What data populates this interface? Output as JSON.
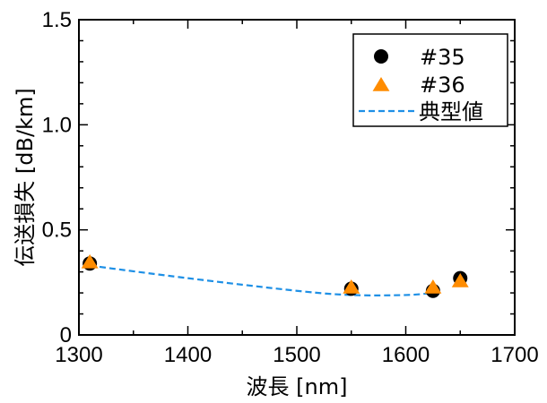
{
  "chart_data": {
    "type": "scatter",
    "xlabel": "波長 [nm]",
    "ylabel": "伝送損失 [dB/km]",
    "xlim": [
      1300,
      1700
    ],
    "ylim": [
      0,
      1.5
    ],
    "x_ticks": [
      "1300",
      "1400",
      "1500",
      "1600",
      "1700"
    ],
    "y_ticks": [
      "0",
      "0.5",
      "1.0",
      "1.5"
    ],
    "legend_position": "top-right",
    "grid": false,
    "series": [
      {
        "name": "#35",
        "marker": "circle",
        "color": "#000000",
        "points": [
          {
            "x": 1310,
            "y": 0.34
          },
          {
            "x": 1550,
            "y": 0.22
          },
          {
            "x": 1625,
            "y": 0.21
          },
          {
            "x": 1650,
            "y": 0.27
          }
        ]
      },
      {
        "name": "#36",
        "marker": "triangle",
        "color": "#ff8c00",
        "points": [
          {
            "x": 1310,
            "y": 0.35
          },
          {
            "x": 1550,
            "y": 0.23
          },
          {
            "x": 1625,
            "y": 0.23
          },
          {
            "x": 1650,
            "y": 0.26
          }
        ]
      },
      {
        "name": "典型値",
        "marker": "dashed-line",
        "color": "#1e90e6",
        "points": [
          {
            "x": 1310,
            "y": 0.33
          },
          {
            "x": 1400,
            "y": 0.27
          },
          {
            "x": 1500,
            "y": 0.21
          },
          {
            "x": 1550,
            "y": 0.19
          },
          {
            "x": 1600,
            "y": 0.19
          },
          {
            "x": 1625,
            "y": 0.2
          }
        ]
      }
    ]
  }
}
